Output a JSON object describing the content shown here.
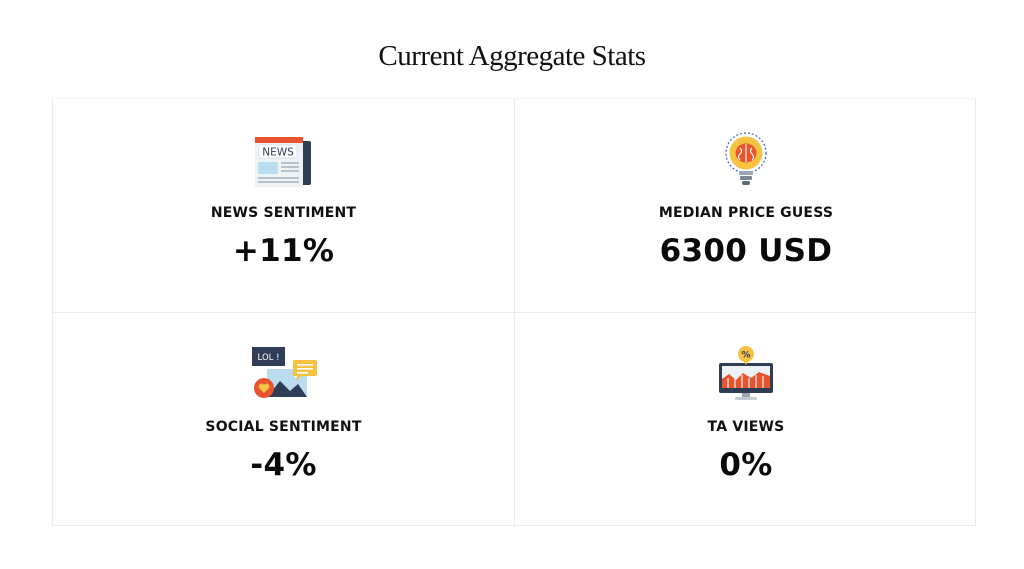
{
  "page": {
    "title": "Current Aggregate Stats"
  },
  "stats": [
    {
      "icon": "newspaper-icon",
      "icon_text": "NEWS",
      "label": "NEWS SENTIMENT",
      "value": "+11%"
    },
    {
      "icon": "brain-lightbulb-icon",
      "label": "MEDIAN PRICE GUESS",
      "value": "6300 USD"
    },
    {
      "icon": "social-media-icon",
      "icon_text": "LOL !",
      "label": "SOCIAL SENTIMENT",
      "value": "-4%"
    },
    {
      "icon": "chart-monitor-icon",
      "icon_text": "%",
      "label": "TA VIEWS",
      "value": "0%"
    }
  ],
  "colors": {
    "accent_orange": "#e8542e",
    "bulb_yellow": "#f5c242",
    "navy": "#2f3e56",
    "light_blue": "#b9dcef"
  }
}
